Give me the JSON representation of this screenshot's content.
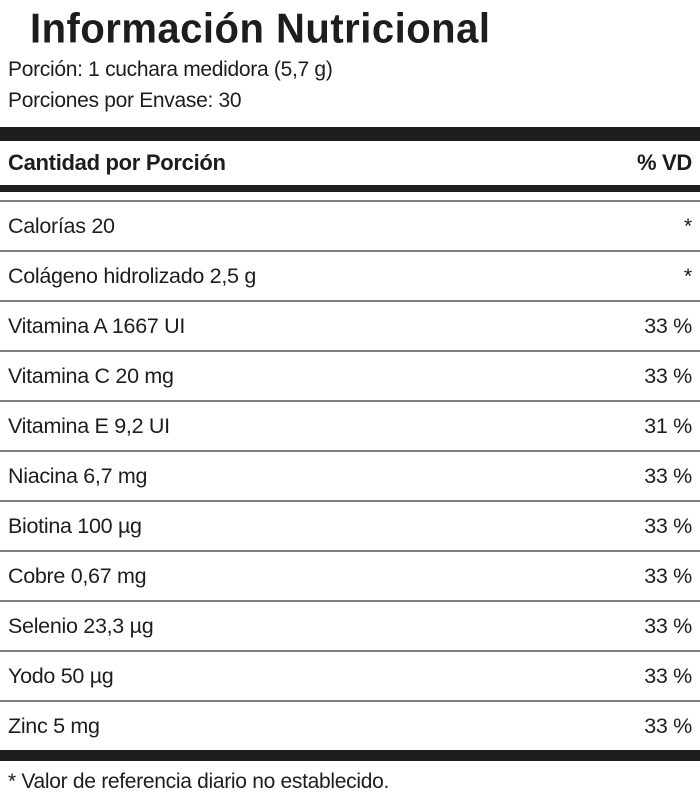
{
  "label": {
    "title": "Información Nutricional",
    "serving_size": "Porción: 1 cuchara medidora (5,7 g)",
    "servings_per_container": "Porciones por Envase: 30",
    "header": {
      "amount_per_serving": "Cantidad por Porción",
      "daily_value": "% VD"
    },
    "rows": [
      {
        "name": "Calorías 20",
        "dv": "*"
      },
      {
        "name": "Colágeno hidrolizado 2,5 g",
        "dv": "*"
      },
      {
        "name": "Vitamina A 1667 UI",
        "dv": "33 %"
      },
      {
        "name": "Vitamina C 20 mg",
        "dv": "33 %"
      },
      {
        "name": "Vitamina E 9,2 UI",
        "dv": "31 %"
      },
      {
        "name": "Niacina 6,7 mg",
        "dv": "33 %"
      },
      {
        "name": "Biotina 100 µg",
        "dv": "33 %"
      },
      {
        "name": "Cobre 0,67 mg",
        "dv": "33 %"
      },
      {
        "name": "Selenio 23,3 µg",
        "dv": "33 %"
      },
      {
        "name": "Yodo 50 µg",
        "dv": "33 %"
      },
      {
        "name": "Zinc 5 mg",
        "dv": "33 %"
      }
    ],
    "footnote": "* Valor de referencia diario no establecido.",
    "colors": {
      "text": "#1d1d1b",
      "rule_thin": "#818181",
      "rule_thick": "#1d1d1b",
      "background": "#ffffff"
    }
  }
}
